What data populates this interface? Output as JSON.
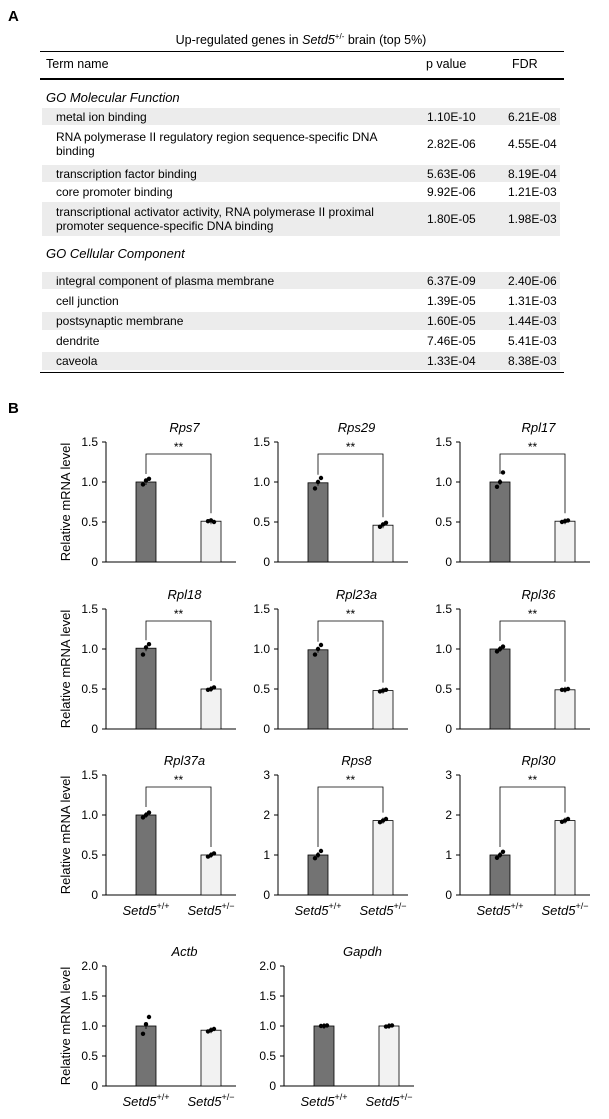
{
  "panel_a": {
    "letter": "A",
    "title_prefix": "Up-regulated genes in ",
    "title_gene": "Setd5",
    "title_sup": "+/-",
    "title_suffix": " brain (top 5%)",
    "col_term": "Term name",
    "col_p": "p value",
    "col_fdr": "FDR",
    "sections": [
      {
        "name": "GO Molecular Function",
        "rows": [
          {
            "term": "metal ion binding",
            "p": "1.10E-10",
            "fdr": "6.21E-08"
          },
          {
            "term": "RNA polymerase II regulatory region sequence-specific DNA binding",
            "p": "2.82E-06",
            "fdr": "4.55E-04"
          },
          {
            "term": "transcription factor binding",
            "p": "5.63E-06",
            "fdr": "8.19E-04"
          },
          {
            "term": "core promoter binding",
            "p": "9.92E-06",
            "fdr": "1.21E-03"
          },
          {
            "term": "transcriptional activator activity, RNA polymerase II proximal promoter sequence-specific DNA binding",
            "p": "1.80E-05",
            "fdr": "1.98E-03"
          }
        ]
      },
      {
        "name": "GO Cellular Component",
        "rows": [
          {
            "term": "integral component of plasma membrane",
            "p": "6.37E-09",
            "fdr": "2.40E-06"
          },
          {
            "term": "cell junction",
            "p": "1.39E-05",
            "fdr": "1.31E-03"
          },
          {
            "term": "postsynaptic membrane",
            "p": "1.60E-05",
            "fdr": "1.44E-03"
          },
          {
            "term": "dendrite",
            "p": "7.46E-05",
            "fdr": "5.41E-03"
          },
          {
            "term": "caveola",
            "p": "1.33E-04",
            "fdr": "8.38E-03"
          }
        ]
      }
    ]
  },
  "panel_b": {
    "letter": "B",
    "ylabel": "Relative mRNA level",
    "sig_label": "**",
    "group_gene": "Setd5",
    "group_sups": [
      "+/+",
      "+/−"
    ]
  },
  "chart_data": [
    {
      "type": "bar",
      "title": "Rps7",
      "ylabel": "Relative mRNA level",
      "categories": [
        "Setd5+/+",
        "Setd5+/-"
      ],
      "values": [
        1.0,
        0.51
      ],
      "ylim": [
        0,
        1.5
      ],
      "yticks": [
        0,
        0.5,
        1.0,
        1.5
      ],
      "ytick_labels": [
        "0",
        "0.5",
        "1.0",
        "1.5"
      ],
      "significance": "**",
      "points": [
        [
          0.97,
          1.02,
          1.04
        ],
        [
          0.51,
          0.52,
          0.5
        ]
      ]
    },
    {
      "type": "bar",
      "title": "Rps29",
      "ylabel": "",
      "categories": [
        "Setd5+/+",
        "Setd5+/-"
      ],
      "values": [
        0.99,
        0.46
      ],
      "ylim": [
        0,
        1.5
      ],
      "yticks": [
        0,
        0.5,
        1.0,
        1.5
      ],
      "ytick_labels": [
        "0",
        "0.5",
        "1.0",
        "1.5"
      ],
      "significance": "**",
      "points": [
        [
          0.92,
          1.0,
          1.05
        ],
        [
          0.44,
          0.47,
          0.49
        ]
      ]
    },
    {
      "type": "bar",
      "title": "Rpl17",
      "ylabel": "",
      "categories": [
        "Setd5+/+",
        "Setd5+/-"
      ],
      "values": [
        1.0,
        0.51
      ],
      "ylim": [
        0,
        1.5
      ],
      "yticks": [
        0,
        0.5,
        1.0,
        1.5
      ],
      "ytick_labels": [
        "0",
        "0.5",
        "1.0",
        "1.5"
      ],
      "significance": "**",
      "points": [
        [
          0.94,
          1.0,
          1.12
        ],
        [
          0.5,
          0.51,
          0.52
        ]
      ]
    },
    {
      "type": "bar",
      "title": "Rpl18",
      "ylabel": "Relative mRNA level",
      "categories": [
        "Setd5+/+",
        "Setd5+/-"
      ],
      "values": [
        1.01,
        0.5
      ],
      "ylim": [
        0,
        1.5
      ],
      "yticks": [
        0,
        0.5,
        1.0,
        1.5
      ],
      "ytick_labels": [
        "0",
        "0.5",
        "1.0",
        "1.5"
      ],
      "significance": "**",
      "points": [
        [
          0.93,
          1.02,
          1.06
        ],
        [
          0.49,
          0.5,
          0.52
        ]
      ]
    },
    {
      "type": "bar",
      "title": "Rpl23a",
      "ylabel": "",
      "categories": [
        "Setd5+/+",
        "Setd5+/-"
      ],
      "values": [
        0.99,
        0.48
      ],
      "ylim": [
        0,
        1.5
      ],
      "yticks": [
        0,
        0.5,
        1.0,
        1.5
      ],
      "ytick_labels": [
        "0",
        "0.5",
        "1.0",
        "1.5"
      ],
      "significance": "**",
      "points": [
        [
          0.93,
          1.0,
          1.05
        ],
        [
          0.47,
          0.48,
          0.49
        ]
      ]
    },
    {
      "type": "bar",
      "title": "Rpl36",
      "ylabel": "",
      "categories": [
        "Setd5+/+",
        "Setd5+/-"
      ],
      "values": [
        1.0,
        0.49
      ],
      "ylim": [
        0,
        1.5
      ],
      "yticks": [
        0,
        0.5,
        1.0,
        1.5
      ],
      "ytick_labels": [
        "0",
        "0.5",
        "1.0",
        "1.5"
      ],
      "significance": "**",
      "points": [
        [
          0.97,
          1.0,
          1.03
        ],
        [
          0.49,
          0.49,
          0.5
        ]
      ]
    },
    {
      "type": "bar",
      "title": "Rpl37a",
      "ylabel": "Relative mRNA level",
      "categories": [
        "Setd5+/+",
        "Setd5+/-"
      ],
      "values": [
        1.0,
        0.5
      ],
      "ylim": [
        0,
        1.5
      ],
      "yticks": [
        0,
        0.5,
        1.0,
        1.5
      ],
      "ytick_labels": [
        "0",
        "0.5",
        "1.0",
        "1.5"
      ],
      "significance": "**",
      "points": [
        [
          0.97,
          1.0,
          1.03
        ],
        [
          0.48,
          0.5,
          0.52
        ]
      ]
    },
    {
      "type": "bar",
      "title": "Rps8",
      "ylabel": "",
      "categories": [
        "Setd5+/+",
        "Setd5+/-"
      ],
      "values": [
        1.0,
        1.86
      ],
      "ylim": [
        0,
        3
      ],
      "yticks": [
        0,
        1,
        2,
        3
      ],
      "ytick_labels": [
        "0",
        "1",
        "2",
        "3"
      ],
      "significance": "**",
      "points": [
        [
          0.92,
          1.0,
          1.1
        ],
        [
          1.82,
          1.86,
          1.9
        ]
      ]
    },
    {
      "type": "bar",
      "title": "Rpl30",
      "ylabel": "",
      "categories": [
        "Setd5+/+",
        "Setd5+/-"
      ],
      "values": [
        1.0,
        1.86
      ],
      "ylim": [
        0,
        3
      ],
      "yticks": [
        0,
        1,
        2,
        3
      ],
      "ytick_labels": [
        "0",
        "1",
        "2",
        "3"
      ],
      "significance": "**",
      "points": [
        [
          0.93,
          1.0,
          1.08
        ],
        [
          1.83,
          1.86,
          1.9
        ]
      ]
    },
    {
      "type": "bar",
      "title": "Actb",
      "ylabel": "Relative mRNA level",
      "categories": [
        "Setd5+/+",
        "Setd5+/-"
      ],
      "values": [
        1.0,
        0.93
      ],
      "ylim": [
        0,
        2.0
      ],
      "yticks": [
        0,
        0.5,
        1.0,
        1.5,
        2.0
      ],
      "ytick_labels": [
        "0",
        "0.5",
        "1.0",
        "1.5",
        "2.0"
      ],
      "significance": "",
      "points": [
        [
          0.87,
          1.03,
          1.15
        ],
        [
          0.91,
          0.93,
          0.95
        ]
      ]
    },
    {
      "type": "bar",
      "title": "Gapdh",
      "ylabel": "",
      "categories": [
        "Setd5+/+",
        "Setd5+/-"
      ],
      "values": [
        1.0,
        1.0
      ],
      "ylim": [
        0,
        2.0
      ],
      "yticks": [
        0,
        0.5,
        1.0,
        1.5,
        2.0
      ],
      "ytick_labels": [
        "0",
        "0.5",
        "1.0",
        "1.5",
        "2.0"
      ],
      "significance": "",
      "points": [
        [
          1.0,
          1.0,
          1.01
        ],
        [
          0.99,
          1.0,
          1.01
        ]
      ]
    }
  ],
  "colors": {
    "bar_wt": "#737373",
    "bar_het": "#f2f2f2",
    "stroke": "#000000",
    "row_shade": "#ececec"
  }
}
